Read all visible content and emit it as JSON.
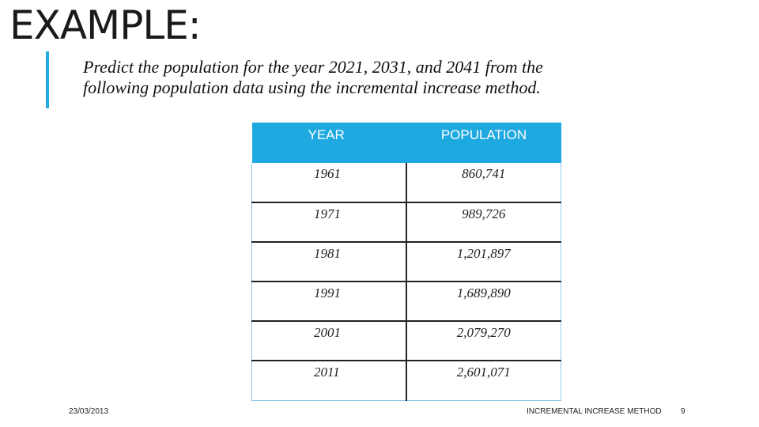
{
  "slide": {
    "title": "EXAMPLE:",
    "question": "Predict the population for the year 2021, 2031, and 2041 from the following population data using the incremental increase method."
  },
  "table": {
    "headers": [
      "YEAR",
      "POPULATION"
    ],
    "rows": [
      {
        "year": "1961",
        "population": "860,741"
      },
      {
        "year": "1971",
        "population": "989,726"
      },
      {
        "year": "1981",
        "population": "1,201,897"
      },
      {
        "year": "1991",
        "population": "1,689,890"
      },
      {
        "year": "2001",
        "population": "2,079,270"
      },
      {
        "year": "2011",
        "population": "2,601,071"
      }
    ]
  },
  "footer": {
    "date": "23/03/2013",
    "title": "INCREMENTAL INCREASE METHOD",
    "page": "9"
  },
  "colors": {
    "accent": "#27a9e1",
    "header_bg": "#1fa9e1"
  }
}
